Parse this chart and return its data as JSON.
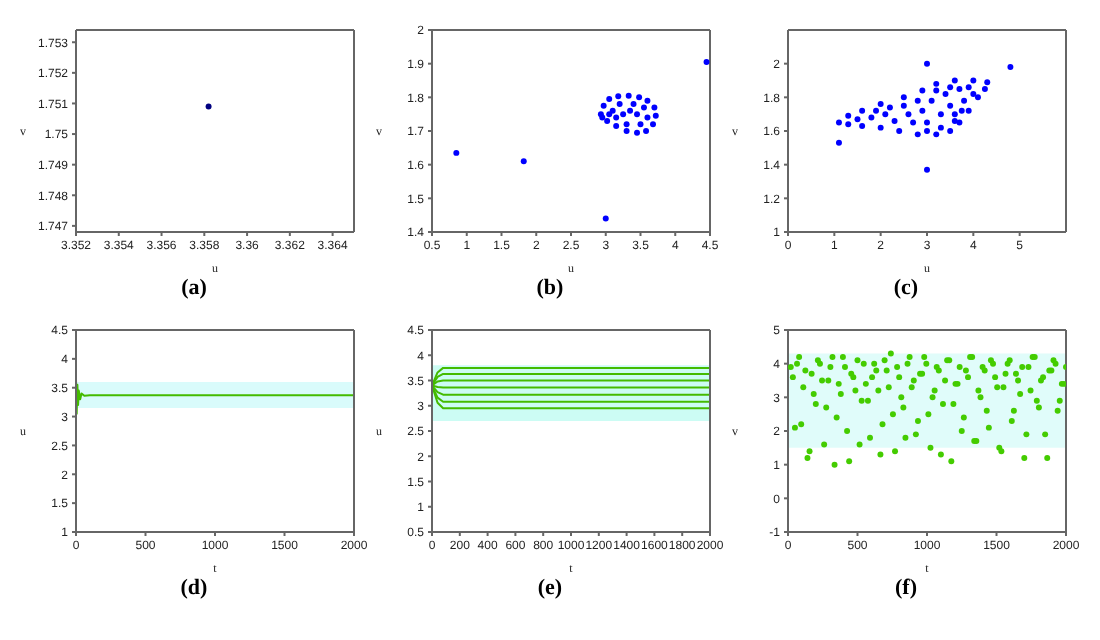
{
  "chart_data": [
    {
      "type": "scatter",
      "title": "(a)",
      "xlabel": "u",
      "ylabel": "v",
      "xlim": [
        3.352,
        3.365
      ],
      "ylim": [
        1.7468,
        1.7534
      ],
      "xticks": [
        3.352,
        3.354,
        3.356,
        3.358,
        3.36,
        3.362,
        3.364
      ],
      "yticks": [
        1.747,
        1.748,
        1.749,
        1.75,
        1.751,
        1.752,
        1.753
      ],
      "marker": "circle",
      "series": [
        {
          "color": "#000080",
          "x": [
            3.3582
          ],
          "values": [
            1.7509
          ]
        }
      ]
    },
    {
      "type": "scatter",
      "title": "(b)",
      "xlabel": "u",
      "ylabel": "v",
      "xlim": [
        0.5,
        4.5
      ],
      "ylim": [
        1.4,
        2
      ],
      "xticks": [
        0.5,
        1,
        1.5,
        2,
        2.5,
        3,
        3.5,
        4,
        4.5
      ],
      "yticks": [
        1.4,
        1.5,
        1.6,
        1.7,
        1.8,
        1.9,
        2
      ],
      "marker": "circle",
      "series": [
        {
          "color": "#0000ff",
          "x": [
            0.85,
            1.82,
            3.0,
            4.45,
            2.93,
            2.97,
            3.05,
            3.18,
            3.33,
            3.48,
            3.6,
            3.7,
            3.72,
            3.68,
            3.58,
            3.45,
            3.3,
            3.15,
            3.02,
            2.95,
            3.1,
            3.2,
            3.4,
            3.55,
            3.6,
            3.5,
            3.3,
            3.15,
            3.25,
            3.45,
            3.05,
            3.35
          ],
          "values": [
            1.635,
            1.61,
            1.44,
            1.905,
            1.75,
            1.775,
            1.795,
            1.803,
            1.805,
            1.8,
            1.79,
            1.77,
            1.745,
            1.72,
            1.7,
            1.695,
            1.7,
            1.715,
            1.73,
            1.74,
            1.76,
            1.78,
            1.78,
            1.77,
            1.74,
            1.72,
            1.72,
            1.74,
            1.75,
            1.75,
            1.75,
            1.76
          ]
        }
      ]
    },
    {
      "type": "scatter",
      "title": "(c)",
      "xlabel": "u",
      "ylabel": "v",
      "xlim": [
        0,
        6
      ],
      "ylim": [
        1,
        2.2
      ],
      "xticks": [
        0,
        1,
        2,
        3,
        4,
        5
      ],
      "yticks": [
        1,
        1.2,
        1.4,
        1.6,
        1.8,
        2
      ],
      "marker": "circle",
      "series": [
        {
          "color": "#0000ff",
          "x": [
            1.1,
            3.0,
            3.0,
            4.8,
            1.1,
            1.3,
            1.6,
            2.0,
            2.5,
            2.9,
            3.2,
            3.6,
            4.0,
            4.3,
            4.25,
            4.1,
            3.9,
            3.7,
            3.5,
            3.2,
            2.8,
            2.4,
            2.0,
            1.6,
            1.3,
            1.5,
            1.8,
            2.1,
            2.3,
            2.6,
            2.7,
            2.9,
            3.0,
            3.1,
            3.3,
            3.4,
            3.5,
            3.6,
            3.7,
            3.8,
            3.9,
            4.0,
            3.3,
            2.5,
            2.2,
            1.9,
            3.2,
            3.5,
            2.8,
            3.0,
            3.6,
            3.75
          ],
          "values": [
            1.53,
            2.0,
            1.37,
            1.98,
            1.65,
            1.69,
            1.72,
            1.76,
            1.8,
            1.84,
            1.88,
            1.9,
            1.9,
            1.89,
            1.85,
            1.8,
            1.72,
            1.65,
            1.6,
            1.58,
            1.58,
            1.6,
            1.62,
            1.63,
            1.64,
            1.67,
            1.68,
            1.7,
            1.66,
            1.7,
            1.65,
            1.72,
            1.65,
            1.78,
            1.7,
            1.82,
            1.75,
            1.66,
            1.85,
            1.78,
            1.86,
            1.82,
            1.62,
            1.75,
            1.74,
            1.72,
            1.84,
            1.86,
            1.78,
            1.6,
            1.7,
            1.72
          ]
        }
      ]
    },
    {
      "type": "line",
      "title": "(d)",
      "xlabel": "t",
      "ylabel": "u",
      "xlim": [
        0,
        2000
      ],
      "ylim": [
        1,
        4.5
      ],
      "xticks": [
        0,
        500,
        1000,
        1500,
        2000
      ],
      "yticks": [
        1,
        1.5,
        2,
        2.5,
        3,
        3.5,
        4,
        4.5
      ],
      "bands": [
        {
          "axis": "y",
          "from": 3.15,
          "to": 3.6,
          "color": "#d9fbfb"
        }
      ],
      "series": [
        {
          "color": "#44bb00",
          "x": [
            0,
            5,
            10,
            15,
            20,
            30,
            40,
            60,
            100,
            2000
          ],
          "values": [
            3.65,
            3.05,
            3.55,
            3.2,
            3.45,
            3.3,
            3.4,
            3.36,
            3.37,
            3.37
          ]
        }
      ]
    },
    {
      "type": "line",
      "title": "(e)",
      "xlabel": "t",
      "ylabel": "u",
      "xlim": [
        0,
        2000
      ],
      "ylim": [
        0.5,
        4.5
      ],
      "xticks": [
        0,
        200,
        400,
        600,
        800,
        1000,
        1200,
        1400,
        1600,
        1800,
        2000
      ],
      "yticks": [
        0.5,
        1,
        1.5,
        2,
        2.5,
        3,
        3.5,
        4,
        4.5
      ],
      "bands": [
        {
          "axis": "y",
          "from": 2.7,
          "to": 3.8,
          "color": "#ccfcf4"
        }
      ],
      "series": [
        {
          "color": "#44bb00",
          "x": [
            0,
            40,
            80,
            2000
          ],
          "values": [
            3.4,
            3.06,
            2.95,
            2.95
          ]
        },
        {
          "color": "#44bb00",
          "x": [
            0,
            40,
            80,
            2000
          ],
          "values": [
            3.4,
            3.16,
            3.08,
            3.08
          ]
        },
        {
          "color": "#44bb00",
          "x": [
            0,
            40,
            80,
            2000
          ],
          "values": [
            3.4,
            3.27,
            3.22,
            3.22
          ]
        },
        {
          "color": "#44bb00",
          "x": [
            0,
            40,
            80,
            2000
          ],
          "values": [
            3.4,
            3.37,
            3.36,
            3.36
          ]
        },
        {
          "color": "#44bb00",
          "x": [
            0,
            40,
            80,
            2000
          ],
          "values": [
            3.4,
            3.48,
            3.5,
            3.5
          ]
        },
        {
          "color": "#44bb00",
          "x": [
            0,
            40,
            80,
            2000
          ],
          "values": [
            3.4,
            3.57,
            3.63,
            3.63
          ]
        },
        {
          "color": "#44bb00",
          "x": [
            0,
            40,
            80,
            2000
          ],
          "values": [
            3.4,
            3.66,
            3.75,
            3.75
          ]
        }
      ]
    },
    {
      "type": "scatter",
      "title": "(f)",
      "xlabel": "t",
      "ylabel": "v",
      "xlim": [
        0,
        2000
      ],
      "ylim": [
        -1,
        5
      ],
      "xticks": [
        0,
        500,
        1000,
        1500,
        2000
      ],
      "yticks": [
        -1,
        0,
        1,
        2,
        3,
        4,
        5
      ],
      "marker": "circle",
      "bands": [
        {
          "axis": "y",
          "from": 1.5,
          "to": 4.3,
          "color": "#e0fcfa"
        }
      ],
      "series": [
        {
          "color": "#44cc00",
          "x": [
            20,
            50,
            80,
            110,
            140,
            170,
            200,
            230,
            260,
            290,
            320,
            350,
            380,
            410,
            440,
            470,
            500,
            530,
            560,
            590,
            620,
            650,
            680,
            710,
            740,
            770,
            800,
            830,
            860,
            890,
            920,
            950,
            980,
            1010,
            1040,
            1070,
            1100,
            1130,
            1160,
            1190,
            1220,
            1250,
            1280,
            1310,
            1340,
            1370,
            1400,
            1430,
            1460,
            1490,
            1520,
            1550,
            1580,
            1610,
            1640,
            1670,
            1700,
            1730,
            1760,
            1790,
            1820,
            1850,
            1880,
            1910,
            1940,
            1970,
            2000
          ],
          "values": [
            3.9,
            2.1,
            4.2,
            3.3,
            1.2,
            3.7,
            2.8,
            4.0,
            1.6,
            3.5,
            4.2,
            2.4,
            3.1,
            3.9,
            1.1,
            3.6,
            4.1,
            2.9,
            3.4,
            1.8,
            4.0,
            3.2,
            2.2,
            3.8,
            4.3,
            1.4,
            3.6,
            2.7,
            4.0,
            3.3,
            1.9,
            3.7,
            4.2,
            2.5,
            3.0,
            3.9,
            1.3,
            3.5,
            4.1,
            2.8,
            3.4,
            2.0,
            3.8,
            4.2,
            1.7,
            3.2,
            3.9,
            2.6,
            4.1,
            3.6,
            1.5,
            3.3,
            4.0,
            2.3,
            3.7,
            3.1,
            1.2,
            3.9,
            4.2,
            2.9,
            3.5,
            1.9,
            3.8,
            4.1,
            2.6,
            3.4,
            3.9
          ]
        },
        {
          "color": "#44cc00",
          "x": [
            35,
            65,
            95,
            125,
            155,
            185,
            215,
            245,
            275,
            305,
            335,
            365,
            395,
            425,
            455,
            485,
            515,
            545,
            575,
            605,
            635,
            665,
            695,
            725,
            755,
            785,
            815,
            845,
            875,
            905,
            935,
            965,
            995,
            1025,
            1055,
            1085,
            1115,
            1145,
            1175,
            1205,
            1235,
            1265,
            1295,
            1325,
            1355,
            1385,
            1415,
            1445,
            1475,
            1505,
            1535,
            1565,
            1595,
            1625,
            1655,
            1685,
            1715,
            1745,
            1775,
            1805,
            1835,
            1865,
            1895,
            1925,
            1955,
            1985
          ],
          "values": [
            3.6,
            4.0,
            2.2,
            3.8,
            1.4,
            3.1,
            4.1,
            3.5,
            2.7,
            3.9,
            1.0,
            3.4,
            4.2,
            2.0,
            3.7,
            3.2,
            1.6,
            4.0,
            2.9,
            3.6,
            3.8,
            1.3,
            4.1,
            3.3,
            2.5,
            3.9,
            3.0,
            1.8,
            4.2,
            3.5,
            2.3,
            3.7,
            4.0,
            1.5,
            3.2,
            3.8,
            2.8,
            4.1,
            1.1,
            3.4,
            3.9,
            2.4,
            3.6,
            4.2,
            1.7,
            3.0,
            3.8,
            2.1,
            4.0,
            3.3,
            1.4,
            3.7,
            4.1,
            2.6,
            3.5,
            3.9,
            1.9,
            3.2,
            4.2,
            2.7,
            3.6,
            1.2,
            3.8,
            4.0,
            2.9,
            3.4
          ]
        }
      ]
    }
  ]
}
